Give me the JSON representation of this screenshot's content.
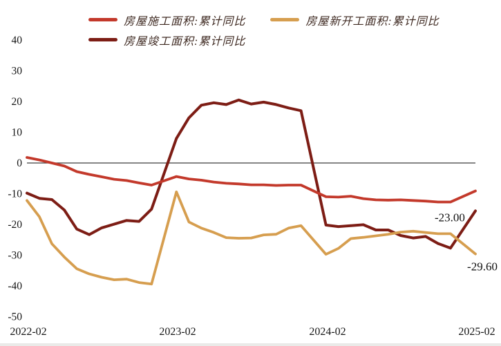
{
  "chart_data": {
    "type": "line",
    "title": "",
    "xlabel": "",
    "ylabel": "",
    "grid": false,
    "zero_line": true,
    "legend_position": "top",
    "ylim": [
      -50,
      45
    ],
    "yticks": [
      40,
      30,
      20,
      10,
      0,
      -10,
      -20,
      -30,
      -40,
      -50
    ],
    "xticks": [
      "2022-02",
      "2023-02",
      "2024-02",
      "2025-02"
    ],
    "x": [
      "2022-02",
      "2022-03",
      "2022-04",
      "2022-05",
      "2022-06",
      "2022-07",
      "2022-08",
      "2022-09",
      "2022-10",
      "2022-11",
      "2022-12",
      "2023-02",
      "2023-03",
      "2023-04",
      "2023-05",
      "2023-06",
      "2023-07",
      "2023-08",
      "2023-09",
      "2023-10",
      "2023-11",
      "2023-12",
      "2024-02",
      "2024-03",
      "2024-04",
      "2024-05",
      "2024-06",
      "2024-07",
      "2024-08",
      "2024-09",
      "2024-10",
      "2024-11",
      "2024-12",
      "2025-02"
    ],
    "series": [
      {
        "name": "房屋施工面积:累计同比",
        "color": "#c3392b",
        "values": [
          1.8,
          1.0,
          0.0,
          -1.0,
          -2.8,
          -3.7,
          -4.5,
          -5.3,
          -5.7,
          -6.5,
          -7.2,
          -4.4,
          -5.2,
          -5.6,
          -6.2,
          -6.6,
          -6.8,
          -7.1,
          -7.1,
          -7.3,
          -7.2,
          -7.2,
          -11.0,
          -11.1,
          -10.8,
          -11.6,
          -12.0,
          -12.1,
          -12.0,
          -12.2,
          -12.4,
          -12.7,
          -12.7,
          -9.1
        ]
      },
      {
        "name": "房屋新开工面积:累计同比",
        "color": "#d69e4f",
        "values": [
          -12.2,
          -17.5,
          -26.3,
          -30.6,
          -34.4,
          -36.1,
          -37.2,
          -38.0,
          -37.8,
          -38.9,
          -39.4,
          -9.4,
          -19.2,
          -21.2,
          -22.6,
          -24.3,
          -24.5,
          -24.4,
          -23.4,
          -23.2,
          -21.2,
          -20.4,
          -29.7,
          -27.8,
          -24.6,
          -24.2,
          -23.7,
          -23.2,
          -22.5,
          -22.2,
          -22.6,
          -23.0,
          -23.0,
          -29.6
        ]
      },
      {
        "name": "房屋竣工面积:累计同比",
        "color": "#7d1d15",
        "values": [
          -9.8,
          -11.5,
          -11.9,
          -15.3,
          -21.5,
          -23.3,
          -21.1,
          -19.9,
          -18.7,
          -19.0,
          -15.0,
          8.0,
          14.7,
          18.8,
          19.6,
          19.0,
          20.5,
          19.2,
          19.8,
          19.0,
          17.9,
          17.0,
          -20.2,
          -20.7,
          -20.4,
          -20.1,
          -21.8,
          -21.8,
          -23.6,
          -24.4,
          -23.9,
          -26.2,
          -27.7,
          -15.6
        ]
      }
    ],
    "point_labels": [
      {
        "series": 1,
        "x": "2024-12",
        "text": "-23.00"
      },
      {
        "series": 1,
        "x": "2025-02",
        "text": "-29.60"
      }
    ]
  }
}
